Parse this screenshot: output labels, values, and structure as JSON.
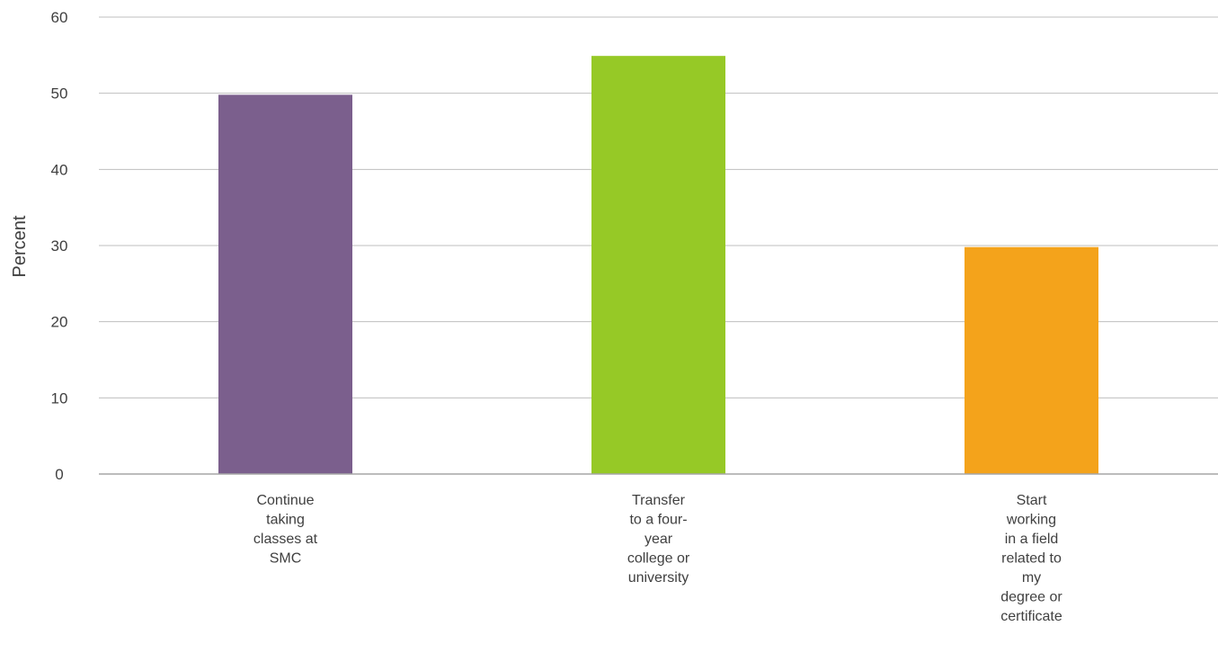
{
  "chart_data": {
    "type": "bar",
    "categories": [
      [
        "Continue",
        "taking",
        "classes at",
        "SMC"
      ],
      [
        "Transfer",
        "to a four-",
        "year",
        "college or",
        "university"
      ],
      [
        "Start",
        "working",
        "in a field",
        "related to",
        "my",
        "degree or",
        "certificate"
      ]
    ],
    "values": [
      49.8,
      54.9,
      29.8
    ],
    "colors": [
      "#7b5f8d",
      "#96c926",
      "#f4a31b"
    ],
    "ylabel": "Percent",
    "xlabel": "",
    "title": "",
    "ylim": [
      0,
      60
    ],
    "yticks": [
      0,
      10,
      20,
      30,
      40,
      50,
      60
    ],
    "grid": true,
    "legend": "none"
  }
}
